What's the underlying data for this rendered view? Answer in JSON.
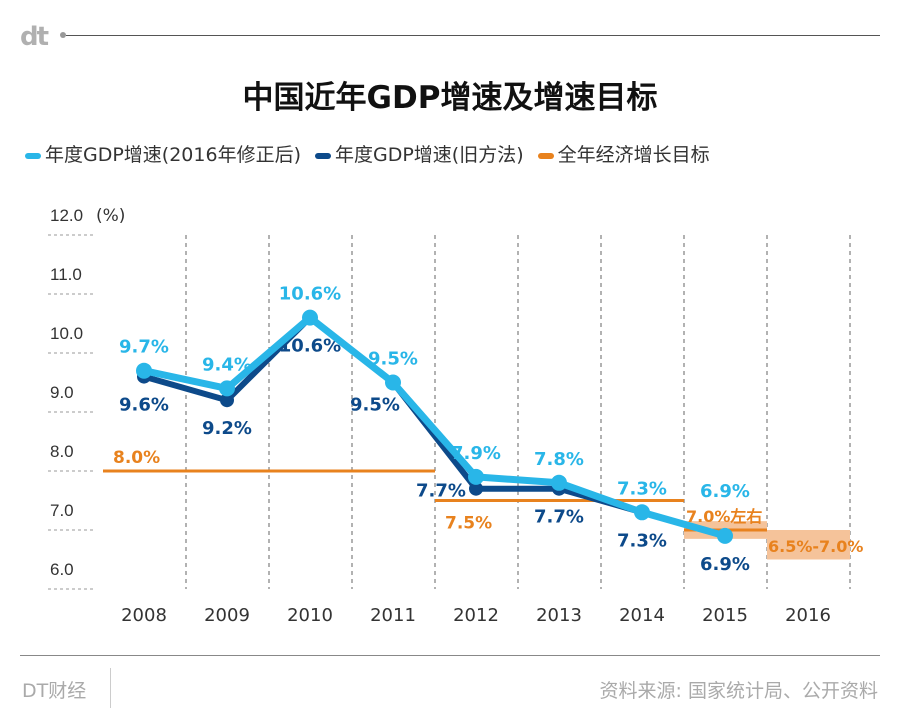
{
  "logo": "dt",
  "footer": {
    "brand": "DT财经",
    "source": "资料来源: 国家统计局、公开资料"
  },
  "chart_data": {
    "type": "line",
    "title": "中国近年GDP增速及增速目标",
    "ylabel": "(%)",
    "ylim": [
      6.0,
      12.0
    ],
    "yticks": [
      "12.0",
      "11.0",
      "10.0",
      "9.0",
      "8.0",
      "7.0",
      "6.0"
    ],
    "categories": [
      "2008",
      "2009",
      "2010",
      "2011",
      "2012",
      "2013",
      "2014",
      "2015",
      "2016"
    ],
    "legend_position": "top",
    "grid": true,
    "series": [
      {
        "name": "年度GDP增速(2016年修正后)",
        "color": "#29b6e8",
        "values": [
          9.7,
          9.4,
          10.6,
          9.5,
          7.9,
          7.8,
          7.3,
          6.9,
          null
        ],
        "labels": [
          "9.7%",
          "9.4%",
          "10.6%",
          "9.5%",
          "7.9%",
          "7.8%",
          "7.3%",
          "6.9%",
          ""
        ]
      },
      {
        "name": "年度GDP增速(旧方法)",
        "color": "#0d4a8a",
        "values": [
          9.6,
          9.2,
          10.6,
          9.5,
          7.7,
          7.7,
          7.3,
          6.9,
          null
        ],
        "labels": [
          "9.6%",
          "9.2%",
          "10.6%",
          "9.5%",
          "7.7%",
          "7.7%",
          "7.3%",
          "6.9%",
          ""
        ]
      },
      {
        "name": "全年经济增长目标",
        "color": "#e8821e",
        "targets": [
          {
            "from": "2008",
            "to": "2011",
            "value": 8.0,
            "label": "8.0%"
          },
          {
            "from": "2012",
            "to": "2014",
            "value": 7.5,
            "label": "7.5%"
          },
          {
            "from": "2015",
            "to": "2015",
            "value": 7.0,
            "band": [
              6.85,
              7.15
            ],
            "label": "7.0%左右"
          },
          {
            "from": "2016",
            "to": "2016",
            "band": [
              6.5,
              7.0
            ],
            "label": "6.5%-7.0%"
          }
        ]
      }
    ]
  }
}
